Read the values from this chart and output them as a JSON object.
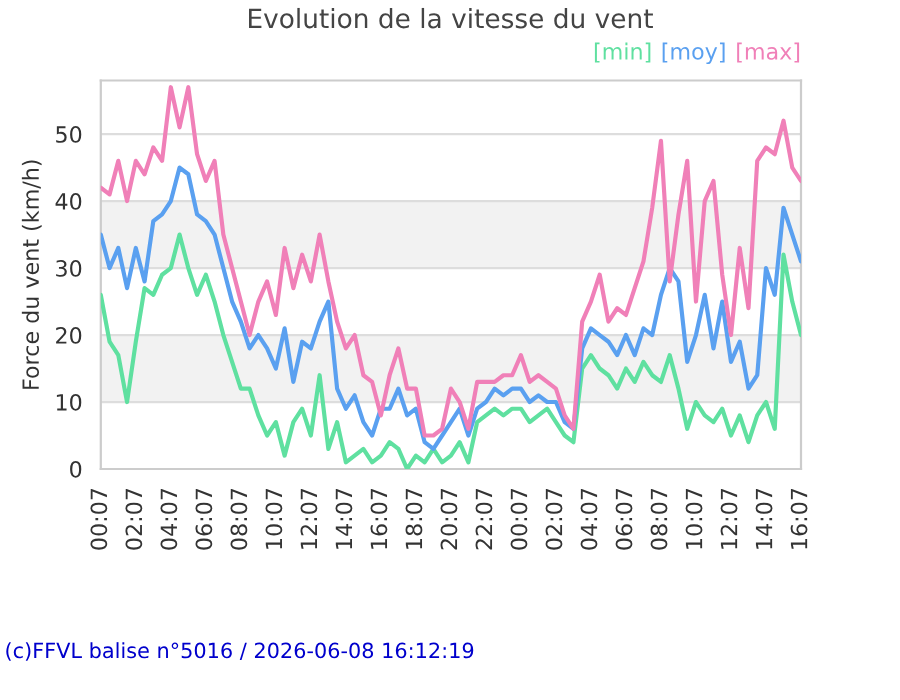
{
  "chart_data": {
    "type": "line",
    "title": "Evolution de la vitesse du vent",
    "ylabel": "Force du vent (km/h)",
    "x": [
      "2026-06-07T00:07",
      "2026-06-07T00:37",
      "2026-06-07T01:07",
      "2026-06-07T01:37",
      "2026-06-07T02:07",
      "2026-06-07T02:37",
      "2026-06-07T03:07",
      "2026-06-07T03:37",
      "2026-06-07T04:07",
      "2026-06-07T04:37",
      "2026-06-07T05:07",
      "2026-06-07T05:37",
      "2026-06-07T06:07",
      "2026-06-07T06:37",
      "2026-06-07T07:07",
      "2026-06-07T07:37",
      "2026-06-07T08:07",
      "2026-06-07T08:37",
      "2026-06-07T09:07",
      "2026-06-07T09:37",
      "2026-06-07T10:07",
      "2026-06-07T10:37",
      "2026-06-07T11:07",
      "2026-06-07T11:37",
      "2026-06-07T12:07",
      "2026-06-07T12:37",
      "2026-06-07T13:07",
      "2026-06-07T13:37",
      "2026-06-07T14:07",
      "2026-06-07T14:37",
      "2026-06-07T15:07",
      "2026-06-07T15:37",
      "2026-06-07T16:07",
      "2026-06-07T16:37",
      "2026-06-07T17:07",
      "2026-06-07T17:37",
      "2026-06-07T18:07",
      "2026-06-07T18:37",
      "2026-06-07T19:07",
      "2026-06-07T19:37",
      "2026-06-07T20:07",
      "2026-06-07T20:37",
      "2026-06-07T21:07",
      "2026-06-07T21:37",
      "2026-06-07T22:07",
      "2026-06-07T22:37",
      "2026-06-07T23:07",
      "2026-06-07T23:37",
      "2026-06-08T00:07",
      "2026-06-08T00:37",
      "2026-06-08T01:07",
      "2026-06-08T01:37",
      "2026-06-08T02:07",
      "2026-06-08T02:37",
      "2026-06-08T03:07",
      "2026-06-08T03:37",
      "2026-06-08T04:07",
      "2026-06-08T04:37",
      "2026-06-08T05:07",
      "2026-06-08T05:37",
      "2026-06-08T06:07",
      "2026-06-08T06:37",
      "2026-06-08T07:07",
      "2026-06-08T07:37",
      "2026-06-08T08:07",
      "2026-06-08T08:37",
      "2026-06-08T09:07",
      "2026-06-08T09:37",
      "2026-06-08T10:07",
      "2026-06-08T10:37",
      "2026-06-08T11:07",
      "2026-06-08T11:37",
      "2026-06-08T12:07",
      "2026-06-08T12:37",
      "2026-06-08T13:07",
      "2026-06-08T13:37",
      "2026-06-08T14:07",
      "2026-06-08T14:37",
      "2026-06-08T15:07",
      "2026-06-08T15:37",
      "2026-06-08T16:07"
    ],
    "series": [
      {
        "name": "[min]",
        "color": "#5fe0a0",
        "values": [
          26,
          19,
          17,
          10,
          19,
          27,
          26,
          29,
          30,
          35,
          30,
          26,
          29,
          25,
          20,
          16,
          12,
          12,
          8,
          5,
          7,
          2,
          7,
          9,
          5,
          14,
          3,
          7,
          1,
          2,
          3,
          1,
          2,
          4,
          3,
          0,
          2,
          1,
          3,
          1,
          2,
          4,
          1,
          7,
          8,
          9,
          8,
          9,
          9,
          7,
          8,
          9,
          7,
          5,
          4,
          15,
          17,
          15,
          14,
          12,
          15,
          13,
          16,
          14,
          13,
          17,
          12,
          6,
          10,
          8,
          7,
          9,
          5,
          8,
          4,
          8,
          10,
          6,
          32,
          25,
          20
        ]
      },
      {
        "name": "[moy]",
        "color": "#5aa0f0",
        "values": [
          35,
          30,
          33,
          27,
          33,
          28,
          37,
          38,
          40,
          45,
          44,
          38,
          37,
          35,
          30,
          25,
          22,
          18,
          20,
          18,
          15,
          21,
          13,
          19,
          18,
          22,
          25,
          12,
          9,
          11,
          7,
          5,
          9,
          9,
          12,
          8,
          9,
          4,
          3,
          5,
          7,
          9,
          5,
          9,
          10,
          12,
          11,
          12,
          12,
          10,
          11,
          10,
          10,
          7,
          6,
          18,
          21,
          20,
          19,
          17,
          20,
          17,
          21,
          20,
          26,
          30,
          28,
          16,
          20,
          26,
          18,
          25,
          16,
          19,
          12,
          14,
          30,
          26,
          39,
          35,
          31
        ]
      },
      {
        "name": "[max]",
        "color": "#f080b8",
        "values": [
          42,
          41,
          46,
          40,
          46,
          44,
          48,
          46,
          57,
          51,
          57,
          47,
          43,
          46,
          35,
          30,
          25,
          20,
          25,
          28,
          23,
          33,
          27,
          32,
          28,
          35,
          28,
          22,
          18,
          20,
          14,
          13,
          8,
          14,
          18,
          12,
          12,
          5,
          5,
          6,
          12,
          10,
          6,
          13,
          13,
          13,
          14,
          14,
          17,
          13,
          14,
          13,
          12,
          8,
          6,
          22,
          25,
          29,
          22,
          24,
          23,
          27,
          31,
          39,
          49,
          28,
          38,
          46,
          25,
          40,
          43,
          29,
          20,
          33,
          24,
          46,
          48,
          47,
          52,
          45,
          43
        ]
      }
    ],
    "xlim": [
      "2026-06-07T00:07",
      "2026-06-08T16:07"
    ],
    "xticks": [
      {
        "value": "2026-06-07T00:07",
        "label": "00:07"
      },
      {
        "value": "2026-06-07T02:07",
        "label": "02:07"
      },
      {
        "value": "2026-06-07T04:07",
        "label": "04:07"
      },
      {
        "value": "2026-06-07T06:07",
        "label": "06:07"
      },
      {
        "value": "2026-06-07T08:07",
        "label": "08:07"
      },
      {
        "value": "2026-06-07T10:07",
        "label": "10:07"
      },
      {
        "value": "2026-06-07T12:07",
        "label": "12:07"
      },
      {
        "value": "2026-06-07T14:07",
        "label": "14:07"
      },
      {
        "value": "2026-06-07T16:07",
        "label": "16:07"
      },
      {
        "value": "2026-06-07T18:07",
        "label": "18:07"
      },
      {
        "value": "2026-06-07T20:07",
        "label": "20:07"
      },
      {
        "value": "2026-06-07T22:07",
        "label": "22:07"
      },
      {
        "value": "2026-06-08T00:07",
        "label": "00:07"
      },
      {
        "value": "2026-06-08T02:07",
        "label": "02:07"
      },
      {
        "value": "2026-06-08T04:07",
        "label": "04:07"
      },
      {
        "value": "2026-06-08T06:07",
        "label": "06:07"
      },
      {
        "value": "2026-06-08T08:07",
        "label": "08:07"
      },
      {
        "value": "2026-06-08T10:07",
        "label": "10:07"
      },
      {
        "value": "2026-06-08T12:07",
        "label": "12:07"
      },
      {
        "value": "2026-06-08T14:07",
        "label": "14:07"
      },
      {
        "value": "2026-06-08T16:07",
        "label": "16:07"
      }
    ],
    "ylim": [
      0,
      58
    ],
    "yticks": [
      0,
      10,
      20,
      30,
      40,
      50
    ],
    "bands": [
      {
        "axis": "y",
        "from": 10,
        "to": 20,
        "color": "#f2f2f2"
      },
      {
        "axis": "y",
        "from": 30,
        "to": 40,
        "color": "#f2f2f2"
      }
    ],
    "grid": "y",
    "legend": "top right",
    "annotations": [
      "(c)FFVL balise n°5016 / 2026-06-08 16:12:19"
    ]
  }
}
